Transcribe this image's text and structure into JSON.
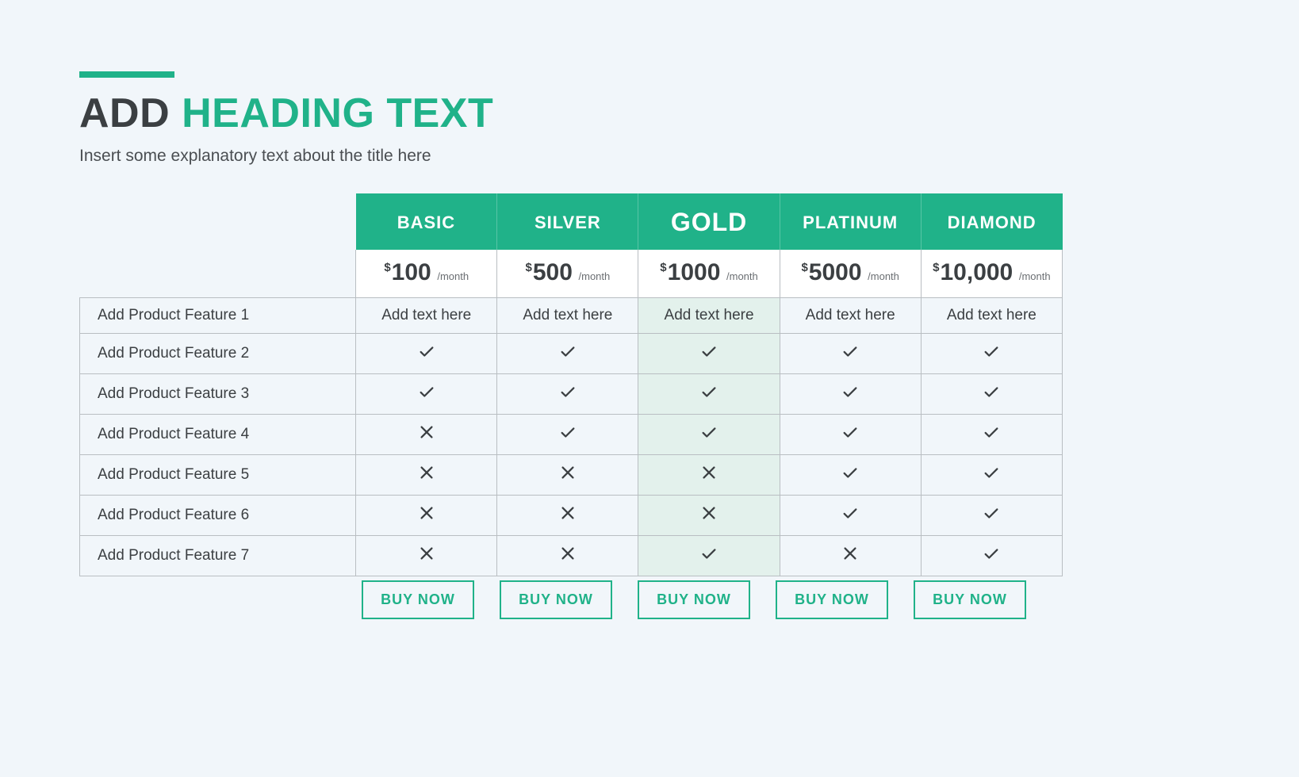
{
  "style": {
    "page_bg": "#f1f6fa",
    "accent": "#20b289",
    "text": "#3b3f42",
    "muted_text": "#6a6e72",
    "border": "#b9bec2",
    "highlight_col_bg": "#e3f1ec",
    "cell_bg": "#f1f6fa",
    "price_cell_bg": "#ffffff",
    "heading_fontsize": 52,
    "subheading_fontsize": 21,
    "tier_fontsize": 22,
    "tier_featured_fontsize": 32,
    "price_fontsize": 30,
    "feature_fontsize": 19,
    "cta_fontsize": 18
  },
  "heading": {
    "part1": "ADD",
    "part2": "HEADING TEXT"
  },
  "subheading": "Insert some explanatory text about the title here",
  "currency_symbol": "$",
  "period_label": "/month",
  "cta_label": "BUY NOW",
  "featured_index": 2,
  "plans": [
    {
      "name": "BASIC",
      "price": "100"
    },
    {
      "name": "SILVER",
      "price": "500"
    },
    {
      "name": "GOLD",
      "price": "1000"
    },
    {
      "name": "PLATINUM",
      "price": "5000"
    },
    {
      "name": "DIAMOND",
      "price": "10,000"
    }
  ],
  "features": [
    "Add Product Feature 1",
    "Add Product Feature 2",
    "Add Product Feature 3",
    "Add Product Feature 4",
    "Add Product Feature 5",
    "Add Product Feature 6",
    "Add Product Feature 7"
  ],
  "row1_text": "Add text here",
  "matrix": [
    [
      "text",
      "text",
      "text",
      "text",
      "text"
    ],
    [
      "yes",
      "yes",
      "yes",
      "yes",
      "yes"
    ],
    [
      "yes",
      "yes",
      "yes",
      "yes",
      "yes"
    ],
    [
      "no",
      "yes",
      "yes",
      "yes",
      "yes"
    ],
    [
      "no",
      "no",
      "no",
      "yes",
      "yes"
    ],
    [
      "no",
      "no",
      "no",
      "yes",
      "yes"
    ],
    [
      "no",
      "no",
      "yes",
      "no",
      "yes"
    ]
  ]
}
